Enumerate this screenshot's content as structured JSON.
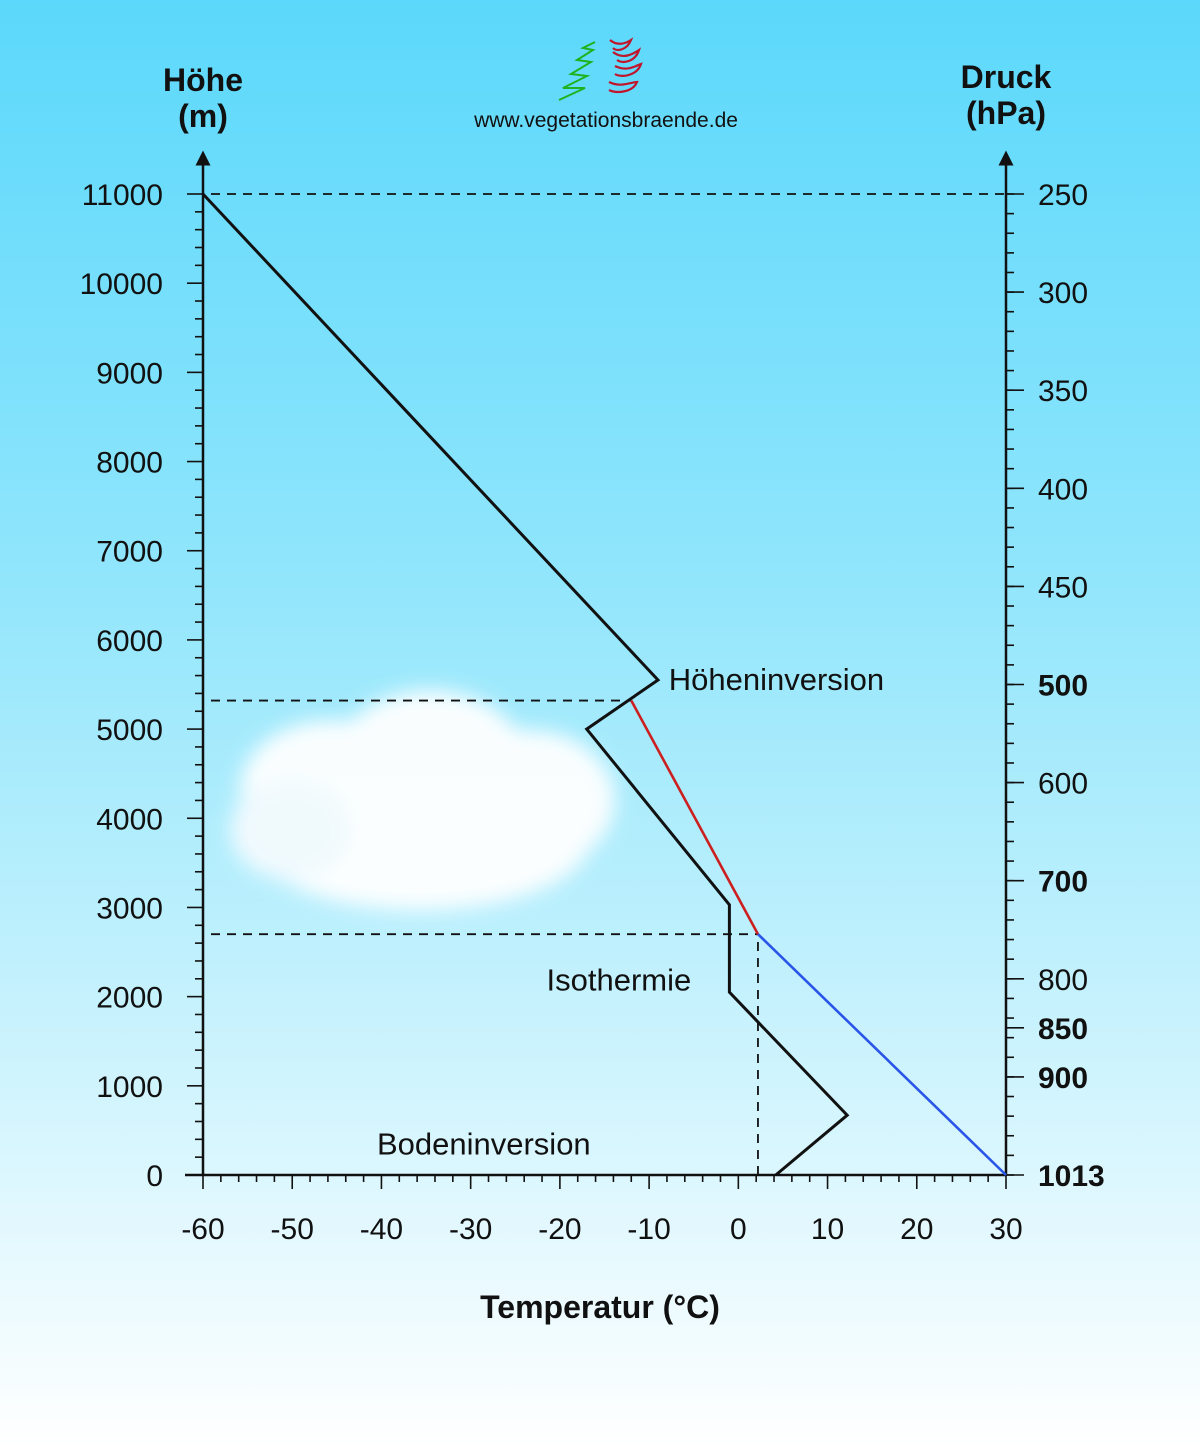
{
  "header": {
    "website": "www.vegetationsbraende.de",
    "logo": "vegetationsbraende-logo"
  },
  "chart_data": {
    "type": "line",
    "xlabel": "Temperatur (°C)",
    "y_left_label_line1": "Höhe",
    "y_left_label_line2": "(m)",
    "y_right_label_line1": "Druck",
    "y_right_label_line2": "(hPa)",
    "xlim": [
      -60,
      30
    ],
    "ylim": [
      0,
      11000
    ],
    "x_ticks": [
      -60,
      -50,
      -40,
      -30,
      -20,
      -10,
      0,
      10,
      20,
      30
    ],
    "y_ticks": [
      0,
      1000,
      2000,
      3000,
      4000,
      5000,
      6000,
      7000,
      8000,
      9000,
      10000,
      11000
    ],
    "pressure_ticks": [
      {
        "label": "250",
        "height": 11000,
        "bold": false
      },
      {
        "label": "300",
        "height": 9900,
        "bold": false
      },
      {
        "label": "350",
        "height": 8800,
        "bold": false
      },
      {
        "label": "400",
        "height": 7700,
        "bold": false
      },
      {
        "label": "450",
        "height": 6600,
        "bold": false
      },
      {
        "label": "500",
        "height": 5500,
        "bold": true
      },
      {
        "label": "600",
        "height": 4400,
        "bold": false
      },
      {
        "label": "700",
        "height": 3300,
        "bold": true
      },
      {
        "label": "800",
        "height": 2200,
        "bold": false
      },
      {
        "label": "850",
        "height": 1650,
        "bold": true
      },
      {
        "label": "900",
        "height": 1100,
        "bold": true
      },
      {
        "label": "1013",
        "height": 0,
        "bold": true
      }
    ],
    "series": [
      {
        "color": "#111111",
        "x": [
          4.2,
          12.2,
          -1.0,
          -1.0,
          -17.0,
          -9.0,
          -60.0
        ],
        "y": [
          0,
          670,
          2050,
          3030,
          5000,
          5550,
          11000
        ]
      },
      {
        "color": "#cc1f1f",
        "x": [
          2.2,
          -12.0
        ],
        "y": [
          2700,
          5320
        ]
      },
      {
        "color": "#2a55e8",
        "x": [
          30.0,
          2.2
        ],
        "y": [
          0,
          2700
        ]
      }
    ],
    "reference_lines": [
      {
        "kind": "horizontal",
        "y": 11000,
        "x_from": -60,
        "x_to": 30
      },
      {
        "kind": "horizontal",
        "y": 5320,
        "x_from": -60,
        "x_to": -12
      },
      {
        "kind": "horizontal",
        "y": 2700,
        "x_from": -60,
        "x_to": 2.2
      },
      {
        "kind": "vertical",
        "x": 2.2,
        "y_from": 0,
        "y_to": 2700
      }
    ],
    "annotations": [
      {
        "text": "Höheninversion",
        "x": -7.8,
        "y": 5550
      },
      {
        "text": "Isothermie",
        "x": -21.5,
        "y": 2180
      },
      {
        "text": "Bodeninversion",
        "x": -40.5,
        "y": 340
      }
    ],
    "grid": false,
    "legend": "none"
  }
}
